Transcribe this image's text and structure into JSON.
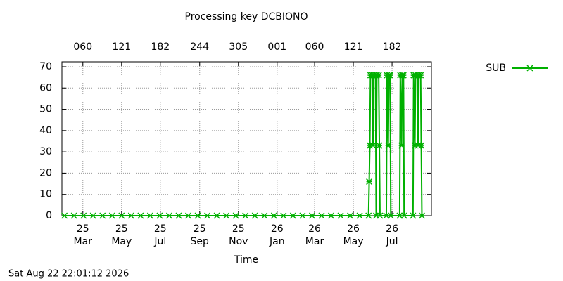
{
  "chart_data": {
    "type": "line",
    "title": "Processing key DCBIONO",
    "xlabel": "Time",
    "timestamp": "Sat Aug 22 22:01:12 2026",
    "xlim": [
      26,
      608
    ],
    "ylim": [
      0,
      72.3
    ],
    "xticks": [
      {
        "value": 59,
        "label": "25 Mar"
      },
      {
        "value": 120,
        "label": "25 May"
      },
      {
        "value": 181,
        "label": "25 Jul"
      },
      {
        "value": 243,
        "label": "25 Sep"
      },
      {
        "value": 304,
        "label": "25 Nov"
      },
      {
        "value": 365,
        "label": "26 Jan"
      },
      {
        "value": 424,
        "label": "26 Mar"
      },
      {
        "value": 485,
        "label": "26 May"
      },
      {
        "value": 546,
        "label": "26 Jul"
      }
    ],
    "x2ticks": [
      {
        "value": 59,
        "label": "060"
      },
      {
        "value": 120,
        "label": "121"
      },
      {
        "value": 181,
        "label": "182"
      },
      {
        "value": 243,
        "label": "244"
      },
      {
        "value": 304,
        "label": "305"
      },
      {
        "value": 365,
        "label": "001"
      },
      {
        "value": 424,
        "label": "060"
      },
      {
        "value": 485,
        "label": "121"
      },
      {
        "value": 546,
        "label": "182"
      }
    ],
    "yticks": [
      0,
      10,
      20,
      30,
      40,
      50,
      60,
      70
    ],
    "grid": true,
    "legend": "right",
    "series": [
      {
        "name": "SUB",
        "color": "#00b000",
        "x": [
          30,
          45,
          60,
          75,
          90,
          105,
          120,
          135,
          150,
          165,
          180,
          195,
          210,
          225,
          240,
          255,
          270,
          285,
          300,
          315,
          330,
          345,
          360,
          375,
          390,
          405,
          420,
          435,
          450,
          465,
          480,
          495,
          509,
          510,
          511,
          512,
          515,
          516,
          517,
          520,
          521,
          522,
          525,
          526,
          527,
          537,
          538,
          540,
          541,
          543,
          544,
          558,
          559,
          561,
          562,
          564,
          565,
          579,
          580,
          582,
          583,
          586,
          587,
          588,
          591,
          592,
          593
        ],
        "values": [
          0,
          0,
          0,
          0,
          0,
          0,
          0,
          0,
          0,
          0,
          0,
          0,
          0,
          0,
          0,
          0,
          0,
          0,
          0,
          0,
          0,
          0,
          0,
          0,
          0,
          0,
          0,
          0,
          0,
          0,
          0,
          0,
          0,
          16,
          33,
          66,
          66,
          33,
          66,
          66,
          0,
          66,
          66,
          33,
          0,
          0,
          66,
          33,
          66,
          66,
          0,
          0,
          66,
          33,
          66,
          66,
          0,
          0,
          66,
          33,
          66,
          66,
          33,
          66,
          66,
          33,
          0
        ]
      }
    ]
  }
}
